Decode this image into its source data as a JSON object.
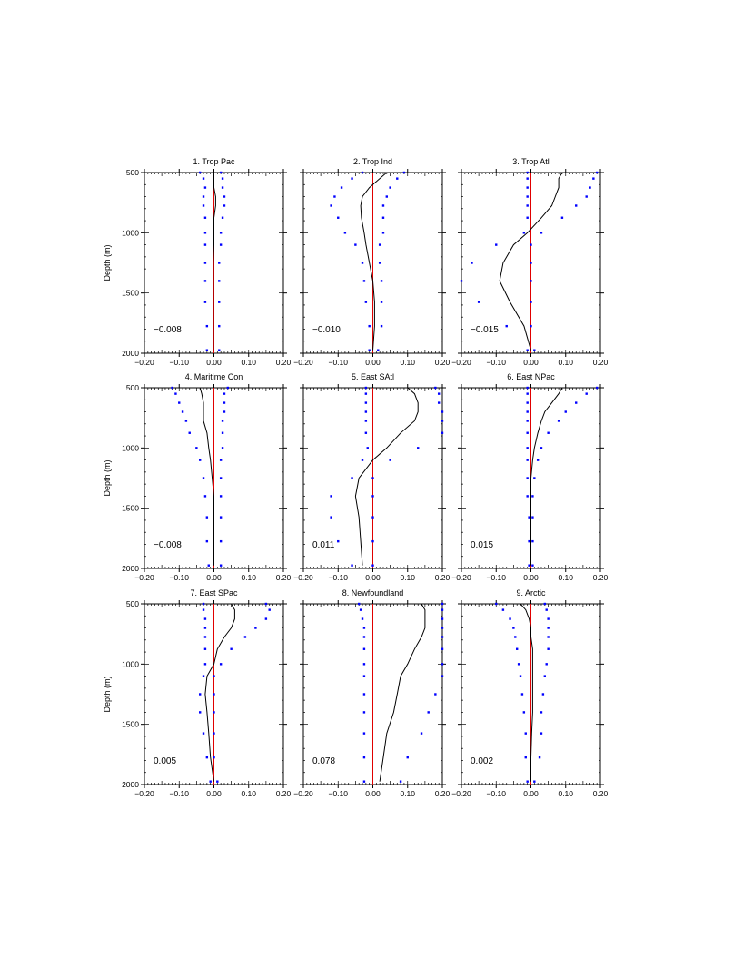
{
  "y_axis_label": "Depth (m)",
  "chart_data": [
    {
      "type": "line",
      "title": "1. Trop Pac",
      "annotation": "−0.008",
      "xlim": [
        -0.2,
        0.2
      ],
      "ylim": [
        2000,
        500
      ],
      "reversed_y": true,
      "x_ticks": [
        "−0.20",
        "−0.10",
        "0.00",
        "0.10",
        "0.20"
      ],
      "y_ticks": [
        "500",
        "1000",
        "1500",
        "2000"
      ],
      "depth": [
        500,
        550,
        625,
        700,
        775,
        875,
        1000,
        1100,
        1250,
        1400,
        1575,
        1775,
        1975
      ],
      "mean": [
        0.0,
        0.0,
        0.0,
        0.005,
        0.005,
        0.0,
        0.0,
        0.0,
        -0.002,
        -0.002,
        -0.002,
        -0.002,
        -0.002
      ],
      "lower": [
        -0.04,
        -0.03,
        -0.025,
        -0.03,
        -0.03,
        -0.025,
        -0.025,
        -0.025,
        -0.025,
        -0.025,
        -0.025,
        -0.02,
        -0.02
      ],
      "upper": [
        0.02,
        0.025,
        0.025,
        0.03,
        0.03,
        0.025,
        0.02,
        0.02,
        0.015,
        0.015,
        0.015,
        0.015,
        0.015
      ]
    },
    {
      "type": "line",
      "title": "2. Trop Ind",
      "annotation": "−0.010",
      "xlim": [
        -0.2,
        0.2
      ],
      "ylim": [
        2000,
        500
      ],
      "reversed_y": true,
      "x_ticks": [
        "−0.20",
        "−0.10",
        "0.00",
        "0.10",
        "0.20"
      ],
      "y_ticks": [
        "500",
        "1000",
        "1500",
        "2000"
      ],
      "depth": [
        500,
        550,
        625,
        700,
        775,
        875,
        1000,
        1100,
        1250,
        1400,
        1575,
        1775,
        1975
      ],
      "mean": [
        0.04,
        0.02,
        -0.01,
        -0.03,
        -0.035,
        -0.033,
        -0.025,
        -0.02,
        -0.01,
        0.0,
        0.005,
        0.005,
        0.0
      ],
      "lower": [
        -0.03,
        -0.06,
        -0.09,
        -0.11,
        -0.12,
        -0.1,
        -0.08,
        -0.05,
        -0.03,
        -0.025,
        -0.02,
        -0.01,
        -0.01
      ],
      "upper": [
        0.09,
        0.07,
        0.05,
        0.04,
        0.03,
        0.03,
        0.03,
        0.02,
        0.02,
        0.025,
        0.025,
        0.025,
        0.015
      ]
    },
    {
      "type": "line",
      "title": "3. Trop Atl",
      "annotation": "−0.015",
      "xlim": [
        -0.2,
        0.2
      ],
      "ylim": [
        2000,
        500
      ],
      "reversed_y": true,
      "x_ticks": [
        "−0.20",
        "−0.10",
        "0.00",
        "0.10",
        "0.20"
      ],
      "y_ticks": [
        "500",
        "1000",
        "1500",
        "2000"
      ],
      "depth": [
        500,
        550,
        625,
        700,
        775,
        875,
        1000,
        1100,
        1250,
        1400,
        1575,
        1775,
        1975
      ],
      "mean": [
        0.09,
        0.08,
        0.08,
        0.07,
        0.06,
        0.03,
        -0.01,
        -0.05,
        -0.08,
        -0.09,
        -0.06,
        -0.02,
        0.0
      ],
      "lower": [
        -0.01,
        -0.01,
        -0.01,
        -0.01,
        -0.01,
        -0.01,
        -0.02,
        -0.1,
        -0.17,
        -0.2,
        -0.15,
        -0.07,
        -0.01
      ],
      "upper": [
        0.19,
        0.18,
        0.17,
        0.16,
        0.13,
        0.09,
        0.03,
        0.0,
        0.0,
        0.0,
        0.0,
        0.0,
        0.01
      ]
    },
    {
      "type": "line",
      "title": "4. Maritime Con",
      "annotation": "−0.008",
      "xlim": [
        -0.2,
        0.2
      ],
      "ylim": [
        2000,
        500
      ],
      "reversed_y": true,
      "x_ticks": [
        "−0.20",
        "−0.10",
        "0.00",
        "0.10",
        "0.20"
      ],
      "y_ticks": [
        "500",
        "1000",
        "1500",
        "2000"
      ],
      "depth": [
        500,
        550,
        625,
        700,
        775,
        875,
        1000,
        1100,
        1250,
        1400,
        1575,
        1775,
        1975
      ],
      "mean": [
        -0.04,
        -0.035,
        -0.03,
        -0.03,
        -0.03,
        -0.02,
        -0.015,
        -0.01,
        -0.005,
        0.0,
        0.0,
        0.0,
        0.0
      ],
      "lower": [
        -0.12,
        -0.11,
        -0.1,
        -0.09,
        -0.08,
        -0.07,
        -0.05,
        -0.04,
        -0.03,
        -0.025,
        -0.02,
        -0.02,
        -0.015
      ],
      "upper": [
        0.04,
        0.03,
        0.03,
        0.03,
        0.025,
        0.025,
        0.025,
        0.02,
        0.02,
        0.02,
        0.02,
        0.02,
        0.02
      ]
    },
    {
      "type": "line",
      "title": "5. East SAtl",
      "annotation": "0.011",
      "xlim": [
        -0.2,
        0.2
      ],
      "ylim": [
        2000,
        500
      ],
      "reversed_y": true,
      "x_ticks": [
        "−0.20",
        "−0.10",
        "0.00",
        "0.10",
        "0.20"
      ],
      "y_ticks": [
        "500",
        "1000",
        "1500",
        "2000"
      ],
      "depth": [
        500,
        550,
        625,
        700,
        775,
        875,
        1000,
        1100,
        1250,
        1400,
        1575,
        1775,
        1975
      ],
      "mean": [
        0.1,
        0.12,
        0.13,
        0.13,
        0.12,
        0.08,
        0.04,
        0.0,
        -0.04,
        -0.05,
        -0.04,
        -0.035,
        -0.03
      ],
      "lower": [
        -0.02,
        -0.02,
        -0.02,
        -0.02,
        -0.02,
        -0.02,
        -0.015,
        -0.03,
        -0.06,
        -0.12,
        -0.12,
        -0.1,
        -0.06
      ],
      "upper": [
        0.18,
        0.19,
        0.19,
        0.2,
        0.22,
        0.2,
        0.13,
        0.05,
        0.0,
        0.0,
        0.0,
        0.0,
        0.0
      ]
    },
    {
      "type": "line",
      "title": "6. East NPac",
      "annotation": "0.015",
      "xlim": [
        -0.2,
        0.2
      ],
      "ylim": [
        2000,
        500
      ],
      "reversed_y": true,
      "x_ticks": [
        "−0.20",
        "−0.10",
        "0.00",
        "0.10",
        "0.20"
      ],
      "y_ticks": [
        "500",
        "1000",
        "1500",
        "2000"
      ],
      "depth": [
        500,
        550,
        625,
        700,
        775,
        875,
        1000,
        1100,
        1250,
        1400,
        1575,
        1775,
        1975
      ],
      "mean": [
        0.09,
        0.08,
        0.06,
        0.04,
        0.03,
        0.02,
        0.01,
        0.005,
        0.0,
        0.0,
        0.0,
        0.0,
        0.0
      ],
      "lower": [
        -0.01,
        -0.01,
        -0.01,
        -0.01,
        -0.01,
        -0.01,
        -0.01,
        -0.01,
        -0.01,
        -0.01,
        -0.005,
        -0.005,
        -0.005
      ],
      "upper": [
        0.19,
        0.16,
        0.13,
        0.1,
        0.08,
        0.05,
        0.03,
        0.02,
        0.01,
        0.005,
        0.005,
        0.005,
        0.005
      ]
    },
    {
      "type": "line",
      "title": "7. East SPac",
      "annotation": "0.005",
      "xlim": [
        -0.2,
        0.2
      ],
      "ylim": [
        2000,
        500
      ],
      "reversed_y": true,
      "x_ticks": [
        "−0.20",
        "−0.10",
        "0.00",
        "0.10",
        "0.20"
      ],
      "y_ticks": [
        "500",
        "1000",
        "1500",
        "2000"
      ],
      "depth": [
        500,
        550,
        625,
        700,
        775,
        875,
        1000,
        1100,
        1250,
        1400,
        1575,
        1775,
        1975
      ],
      "mean": [
        0.05,
        0.06,
        0.06,
        0.05,
        0.03,
        0.01,
        0.0,
        -0.02,
        -0.025,
        -0.02,
        -0.015,
        -0.01,
        0.0
      ],
      "lower": [
        -0.03,
        -0.03,
        -0.025,
        -0.025,
        -0.025,
        -0.025,
        -0.025,
        -0.03,
        -0.04,
        -0.04,
        -0.03,
        -0.02,
        -0.01
      ],
      "upper": [
        0.15,
        0.16,
        0.15,
        0.12,
        0.09,
        0.05,
        0.02,
        0.0,
        0.0,
        0.0,
        0.0,
        0.0,
        0.01
      ]
    },
    {
      "type": "line",
      "title": "8. Newfoundland",
      "annotation": "0.078",
      "xlim": [
        -0.2,
        0.2
      ],
      "ylim": [
        2000,
        500
      ],
      "reversed_y": true,
      "x_ticks": [
        "−0.20",
        "−0.10",
        "0.00",
        "0.10",
        "0.20"
      ],
      "y_ticks": [
        "500",
        "1000",
        "1500",
        "2000"
      ],
      "depth": [
        500,
        550,
        625,
        700,
        775,
        875,
        1000,
        1100,
        1250,
        1400,
        1575,
        1775,
        1975
      ],
      "mean": [
        0.14,
        0.15,
        0.15,
        0.15,
        0.14,
        0.12,
        0.1,
        0.08,
        0.07,
        0.06,
        0.04,
        0.03,
        0.02
      ],
      "lower": [
        -0.04,
        -0.035,
        -0.03,
        -0.025,
        -0.025,
        -0.025,
        -0.025,
        -0.025,
        -0.025,
        -0.025,
        -0.025,
        -0.025,
        -0.025
      ],
      "upper": [
        0.2,
        0.2,
        0.2,
        0.2,
        0.2,
        0.2,
        0.2,
        0.2,
        0.18,
        0.16,
        0.14,
        0.1,
        0.08
      ]
    },
    {
      "type": "line",
      "title": "9. Arctic",
      "annotation": "0.002",
      "xlim": [
        -0.2,
        0.2
      ],
      "ylim": [
        2000,
        500
      ],
      "reversed_y": true,
      "x_ticks": [
        "−0.20",
        "−0.10",
        "0.00",
        "0.10",
        "0.20"
      ],
      "y_ticks": [
        "500",
        "1000",
        "1500",
        "2000"
      ],
      "depth": [
        500,
        550,
        625,
        700,
        775,
        875,
        1000,
        1100,
        1250,
        1400,
        1575,
        1775,
        1975
      ],
      "mean": [
        -0.03,
        -0.015,
        -0.005,
        0.0,
        0.0,
        0.005,
        0.005,
        0.005,
        0.005,
        0.005,
        0.002,
        0.0,
        0.0
      ],
      "lower": [
        -0.1,
        -0.08,
        -0.06,
        -0.05,
        -0.045,
        -0.04,
        -0.035,
        -0.03,
        -0.025,
        -0.02,
        -0.015,
        -0.015,
        -0.01
      ],
      "upper": [
        0.04,
        0.045,
        0.05,
        0.05,
        0.05,
        0.05,
        0.045,
        0.04,
        0.035,
        0.03,
        0.03,
        0.025,
        0.01
      ]
    }
  ],
  "colors": {
    "mean_line": "#000000",
    "zero_line": "#e00000",
    "range_points": "#0000ff",
    "axes": "#000000"
  }
}
